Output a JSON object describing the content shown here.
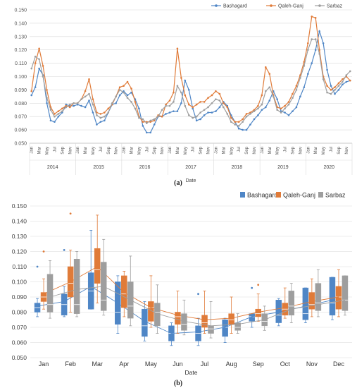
{
  "colors": {
    "Bashagard": "#4f86c6",
    "Qaleh-Ganj": "#e07b39",
    "Sarbaz": "#9e9e9e",
    "grid": "#d9d9d9",
    "axis": "#bfbfbf"
  },
  "chart_data": [
    {
      "type": "line",
      "panel_label": "(a)",
      "xlabel": "Date",
      "ylabel": "",
      "ylim": [
        0.05,
        0.15
      ],
      "yticks": [
        "0.050",
        "0.060",
        "0.070",
        "0.080",
        "0.090",
        "0.100",
        "0.110",
        "0.120",
        "0.130",
        "0.140",
        "0.150"
      ],
      "grid": true,
      "legend_position": "top-right",
      "years": [
        "2014",
        "2015",
        "2016",
        "2017",
        "2018",
        "2019",
        "2020"
      ],
      "month_tick_labels": [
        "Jan",
        "Mar",
        "May",
        "Jul",
        "Sep",
        "Nov"
      ],
      "series": [
        {
          "name": "Bashagard",
          "values": [
            0.086,
            0.092,
            0.106,
            0.101,
            0.08,
            0.067,
            0.066,
            0.07,
            0.073,
            0.079,
            0.078,
            0.078,
            0.079,
            0.078,
            0.077,
            0.082,
            0.073,
            0.064,
            0.066,
            0.067,
            0.073,
            0.079,
            0.08,
            0.086,
            0.089,
            0.086,
            0.088,
            0.083,
            0.076,
            0.063,
            0.058,
            0.058,
            0.064,
            0.07,
            0.07,
            0.072,
            0.073,
            0.074,
            0.074,
            0.08,
            0.097,
            0.09,
            0.076,
            0.067,
            0.068,
            0.071,
            0.073,
            0.073,
            0.074,
            0.077,
            0.081,
            0.078,
            0.071,
            0.066,
            0.061,
            0.06,
            0.06,
            0.064,
            0.068,
            0.071,
            0.075,
            0.077,
            0.082,
            0.089,
            0.083,
            0.074,
            0.073,
            0.071,
            0.074,
            0.077,
            0.085,
            0.092,
            0.102,
            0.11,
            0.12,
            0.134,
            0.125,
            0.105,
            0.093,
            0.087,
            0.09,
            0.094,
            0.096,
            0.097
          ]
        },
        {
          "name": "Qaleh-Ganj",
          "values": [
            0.089,
            0.11,
            0.121,
            0.108,
            0.09,
            0.077,
            0.072,
            0.074,
            0.076,
            0.078,
            0.077,
            0.08,
            0.08,
            0.083,
            0.089,
            0.098,
            0.083,
            0.073,
            0.072,
            0.073,
            0.076,
            0.079,
            0.085,
            0.092,
            0.093,
            0.096,
            0.091,
            0.081,
            0.07,
            0.066,
            0.066,
            0.066,
            0.067,
            0.071,
            0.07,
            0.079,
            0.082,
            0.088,
            0.121,
            0.099,
            0.086,
            0.079,
            0.077,
            0.079,
            0.081,
            0.081,
            0.084,
            0.086,
            0.089,
            0.087,
            0.08,
            0.077,
            0.069,
            0.066,
            0.066,
            0.068,
            0.072,
            0.073,
            0.075,
            0.078,
            0.086,
            0.107,
            0.102,
            0.086,
            0.077,
            0.076,
            0.078,
            0.081,
            0.087,
            0.093,
            0.101,
            0.111,
            0.125,
            0.145,
            0.144,
            0.12,
            0.1,
            0.093,
            0.09,
            0.092,
            0.095,
            0.098,
            0.1,
            0.097
          ]
        },
        {
          "name": "Sarbaz",
          "values": [
            0.106,
            0.115,
            0.113,
            0.1,
            0.084,
            0.075,
            0.07,
            0.072,
            0.074,
            0.077,
            0.079,
            0.08,
            0.08,
            0.083,
            0.085,
            0.087,
            0.079,
            0.071,
            0.069,
            0.07,
            0.073,
            0.08,
            0.085,
            0.09,
            0.088,
            0.084,
            0.081,
            0.076,
            0.069,
            0.068,
            0.065,
            0.067,
            0.068,
            0.07,
            0.075,
            0.078,
            0.078,
            0.081,
            0.093,
            0.088,
            0.078,
            0.071,
            0.069,
            0.07,
            0.073,
            0.075,
            0.077,
            0.08,
            0.083,
            0.082,
            0.077,
            0.072,
            0.066,
            0.064,
            0.063,
            0.066,
            0.07,
            0.072,
            0.074,
            0.076,
            0.079,
            0.089,
            0.092,
            0.085,
            0.075,
            0.073,
            0.076,
            0.079,
            0.084,
            0.09,
            0.099,
            0.108,
            0.12,
            0.128,
            0.128,
            0.117,
            0.098,
            0.088,
            0.087,
            0.09,
            0.093,
            0.096,
            0.101,
            0.104
          ]
        }
      ]
    },
    {
      "type": "box",
      "panel_label": "(b)",
      "xlabel": "Date",
      "ylabel": "",
      "ylim": [
        0.05,
        0.15
      ],
      "yticks": [
        "0.050",
        "0.060",
        "0.070",
        "0.080",
        "0.090",
        "0.100",
        "0.110",
        "0.120",
        "0.130",
        "0.140",
        "0.150"
      ],
      "grid": true,
      "legend_position": "top-right",
      "categories": [
        "Jan",
        "Feb",
        "Mar",
        "Apr",
        "May",
        "Jun",
        "Jul",
        "Aug",
        "Sep",
        "Oct",
        "Nov",
        "Dec"
      ],
      "series": [
        {
          "name": "Bashagard",
          "stats": [
            {
              "min": 0.077,
              "q1": 0.08,
              "median": 0.083,
              "q3": 0.086,
              "max": 0.089,
              "mean": 0.084,
              "outliers": [
                0.11
              ]
            },
            {
              "min": 0.077,
              "q1": 0.078,
              "median": 0.085,
              "q3": 0.092,
              "max": 0.097,
              "mean": 0.087,
              "outliers": [
                0.121
              ]
            },
            {
              "min": 0.082,
              "q1": 0.082,
              "median": 0.094,
              "q3": 0.106,
              "max": 0.134,
              "mean": 0.097,
              "outliers": []
            },
            {
              "min": 0.066,
              "q1": 0.072,
              "median": 0.08,
              "q3": 0.1,
              "max": 0.104,
              "mean": 0.086,
              "outliers": []
            },
            {
              "min": 0.061,
              "q1": 0.064,
              "median": 0.071,
              "q3": 0.082,
              "max": 0.087,
              "mean": 0.074,
              "outliers": []
            },
            {
              "min": 0.058,
              "q1": 0.061,
              "median": 0.066,
              "q3": 0.071,
              "max": 0.073,
              "mean": 0.066,
              "outliers": []
            },
            {
              "min": 0.058,
              "q1": 0.061,
              "median": 0.066,
              "q3": 0.071,
              "max": 0.076,
              "mean": 0.067,
              "outliers": [
                0.092
              ]
            },
            {
              "min": 0.06,
              "q1": 0.064,
              "median": 0.07,
              "q3": 0.075,
              "max": 0.076,
              "mean": 0.07,
              "outliers": []
            },
            {
              "min": 0.07,
              "q1": 0.074,
              "median": 0.077,
              "q3": 0.079,
              "max": 0.079,
              "mean": 0.077,
              "outliers": [
                0.096
              ]
            },
            {
              "min": 0.071,
              "q1": 0.073,
              "median": 0.078,
              "q3": 0.088,
              "max": 0.089,
              "mean": 0.08,
              "outliers": []
            },
            {
              "min": 0.073,
              "q1": 0.075,
              "median": 0.079,
              "q3": 0.096,
              "max": 0.096,
              "mean": 0.084,
              "outliers": []
            },
            {
              "min": 0.075,
              "q1": 0.078,
              "median": 0.086,
              "q3": 0.103,
              "max": 0.103,
              "mean": 0.088,
              "outliers": []
            }
          ]
        },
        {
          "name": "Qaleh-Ganj",
          "stats": [
            {
              "min": 0.082,
              "q1": 0.087,
              "median": 0.09,
              "q3": 0.093,
              "max": 0.102,
              "mean": 0.092,
              "outliers": [
                0.12
              ]
            },
            {
              "min": 0.08,
              "q1": 0.09,
              "median": 0.099,
              "q3": 0.11,
              "max": 0.121,
              "mean": 0.1,
              "outliers": [
                0.145
              ]
            },
            {
              "min": 0.086,
              "q1": 0.099,
              "median": 0.108,
              "q3": 0.122,
              "max": 0.144,
              "mean": 0.11,
              "outliers": []
            },
            {
              "min": 0.077,
              "q1": 0.083,
              "median": 0.092,
              "q3": 0.104,
              "max": 0.107,
              "mean": 0.093,
              "outliers": []
            },
            {
              "min": 0.07,
              "q1": 0.074,
              "median": 0.083,
              "q3": 0.087,
              "max": 0.104,
              "mean": 0.083,
              "outliers": []
            },
            {
              "min": 0.066,
              "q1": 0.072,
              "median": 0.077,
              "q3": 0.08,
              "max": 0.094,
              "mean": 0.078,
              "outliers": []
            },
            {
              "min": 0.066,
              "q1": 0.07,
              "median": 0.073,
              "q3": 0.078,
              "max": 0.094,
              "mean": 0.075,
              "outliers": []
            },
            {
              "min": 0.066,
              "q1": 0.072,
              "median": 0.075,
              "q3": 0.079,
              "max": 0.09,
              "mean": 0.076,
              "outliers": []
            },
            {
              "min": 0.074,
              "q1": 0.077,
              "median": 0.079,
              "q3": 0.082,
              "max": 0.092,
              "mean": 0.08,
              "outliers": [
                0.098
              ]
            },
            {
              "min": 0.076,
              "q1": 0.078,
              "median": 0.082,
              "q3": 0.086,
              "max": 0.096,
              "mean": 0.083,
              "outliers": []
            },
            {
              "min": 0.077,
              "q1": 0.082,
              "median": 0.085,
              "q3": 0.093,
              "max": 0.102,
              "mean": 0.087,
              "outliers": []
            },
            {
              "min": 0.077,
              "q1": 0.082,
              "median": 0.09,
              "q3": 0.097,
              "max": 0.108,
              "mean": 0.09,
              "outliers": []
            }
          ]
        },
        {
          "name": "Sarbaz",
          "stats": [
            {
              "min": 0.076,
              "q1": 0.08,
              "median": 0.085,
              "q3": 0.105,
              "max": 0.114,
              "mean": 0.09,
              "outliers": []
            },
            {
              "min": 0.077,
              "q1": 0.079,
              "median": 0.085,
              "q3": 0.115,
              "max": 0.12,
              "mean": 0.095,
              "outliers": []
            },
            {
              "min": 0.078,
              "q1": 0.081,
              "median": 0.088,
              "q3": 0.113,
              "max": 0.128,
              "mean": 0.097,
              "outliers": []
            },
            {
              "min": 0.071,
              "q1": 0.076,
              "median": 0.084,
              "q3": 0.1,
              "max": 0.117,
              "mean": 0.088,
              "outliers": []
            },
            {
              "min": 0.066,
              "q1": 0.071,
              "median": 0.08,
              "q3": 0.086,
              "max": 0.098,
              "mean": 0.079,
              "outliers": []
            },
            {
              "min": 0.065,
              "q1": 0.068,
              "median": 0.072,
              "q3": 0.079,
              "max": 0.088,
              "mean": 0.074,
              "outliers": []
            },
            {
              "min": 0.063,
              "q1": 0.066,
              "median": 0.069,
              "q3": 0.071,
              "max": 0.087,
              "mean": 0.071,
              "outliers": []
            },
            {
              "min": 0.066,
              "q1": 0.068,
              "median": 0.07,
              "q3": 0.073,
              "max": 0.079,
              "mean": 0.072,
              "outliers": []
            },
            {
              "min": 0.068,
              "q1": 0.071,
              "median": 0.074,
              "q3": 0.079,
              "max": 0.084,
              "mean": 0.075,
              "outliers": []
            },
            {
              "min": 0.073,
              "q1": 0.078,
              "median": 0.084,
              "q3": 0.094,
              "max": 0.099,
              "mean": 0.082,
              "outliers": []
            },
            {
              "min": 0.077,
              "q1": 0.081,
              "median": 0.086,
              "q3": 0.099,
              "max": 0.108,
              "mean": 0.085,
              "outliers": []
            },
            {
              "min": 0.078,
              "q1": 0.081,
              "median": 0.088,
              "q3": 0.104,
              "max": 0.104,
              "mean": 0.088,
              "outliers": []
            }
          ]
        }
      ]
    }
  ]
}
